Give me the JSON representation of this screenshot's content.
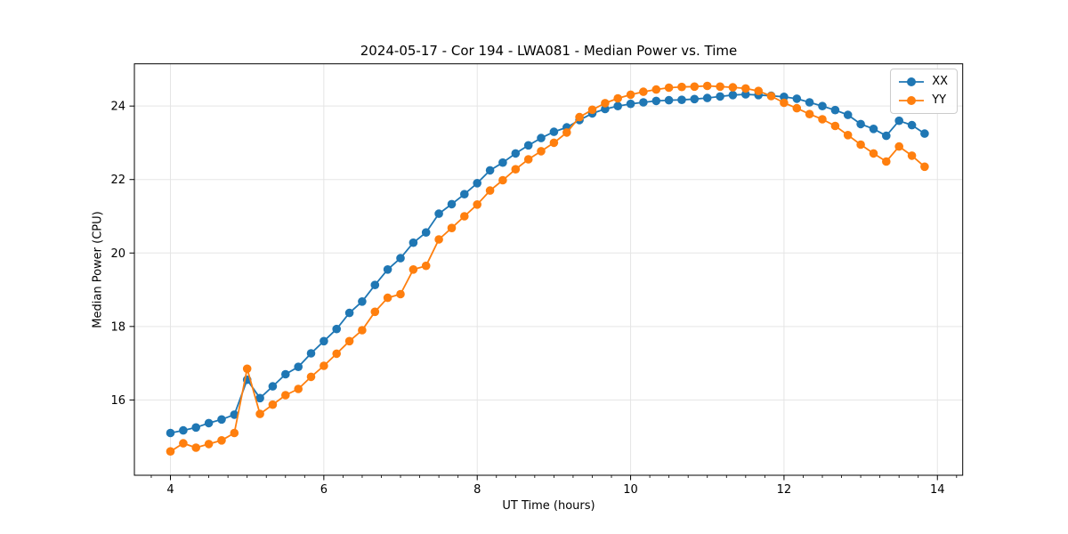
{
  "window": {
    "background_color": "#ffffff"
  },
  "chart_data": {
    "type": "line",
    "title": "2024-05-17 - Cor 194 - LWA081 - Median Power vs. Time",
    "xlabel": "UT Time (hours)",
    "ylabel": "Median Power (CPU)",
    "xlim": [
      3.53,
      14.33
    ],
    "ylim": [
      13.95,
      25.15
    ],
    "xticks": [
      4,
      6,
      8,
      10,
      12,
      14
    ],
    "yticks": [
      16,
      18,
      20,
      22,
      24
    ],
    "x_minor_tick_step": 0.25,
    "grid": true,
    "grid_color": "#e5e5e5",
    "spine_color": "#000000",
    "legend_position": "upper right",
    "x": [
      4.0,
      4.167,
      4.333,
      4.5,
      4.667,
      4.833,
      5.0,
      5.167,
      5.333,
      5.5,
      5.667,
      5.833,
      6.0,
      6.167,
      6.333,
      6.5,
      6.667,
      6.833,
      7.0,
      7.167,
      7.333,
      7.5,
      7.667,
      7.833,
      8.0,
      8.167,
      8.333,
      8.5,
      8.667,
      8.833,
      9.0,
      9.167,
      9.333,
      9.5,
      9.667,
      9.833,
      10.0,
      10.167,
      10.333,
      10.5,
      10.667,
      10.833,
      11.0,
      11.167,
      11.333,
      11.5,
      11.667,
      11.833,
      12.0,
      12.167,
      12.333,
      12.5,
      12.667,
      12.833,
      13.0,
      13.167,
      13.333,
      13.5,
      13.667,
      13.833
    ],
    "series": [
      {
        "name": "XX",
        "color": "#1f77b4",
        "marker": "circle",
        "values": [
          15.1,
          15.17,
          15.25,
          15.37,
          15.47,
          15.6,
          16.55,
          16.05,
          16.37,
          16.7,
          16.9,
          17.27,
          17.6,
          17.93,
          18.37,
          18.68,
          19.13,
          19.55,
          19.86,
          20.28,
          20.56,
          21.07,
          21.33,
          21.6,
          21.9,
          22.25,
          22.46,
          22.71,
          22.93,
          23.13,
          23.3,
          23.42,
          23.62,
          23.8,
          23.92,
          24.0,
          24.06,
          24.1,
          24.14,
          24.16,
          24.17,
          24.19,
          24.22,
          24.26,
          24.3,
          24.32,
          24.3,
          24.28,
          24.25,
          24.2,
          24.1,
          24.0,
          23.89,
          23.76,
          23.51,
          23.38,
          23.19,
          23.6,
          23.48,
          23.25
        ]
      },
      {
        "name": "YY",
        "color": "#ff7f0e",
        "marker": "circle",
        "values": [
          14.6,
          14.82,
          14.7,
          14.8,
          14.9,
          15.1,
          16.85,
          15.62,
          15.87,
          16.13,
          16.3,
          16.63,
          16.93,
          17.26,
          17.6,
          17.9,
          18.4,
          18.78,
          18.88,
          19.55,
          19.65,
          20.37,
          20.68,
          21.0,
          21.32,
          21.7,
          21.98,
          22.28,
          22.55,
          22.77,
          23.0,
          23.28,
          23.7,
          23.9,
          24.08,
          24.21,
          24.31,
          24.39,
          24.45,
          24.5,
          24.52,
          24.53,
          24.55,
          24.53,
          24.51,
          24.48,
          24.41,
          24.27,
          24.09,
          23.94,
          23.78,
          23.64,
          23.46,
          23.21,
          22.95,
          22.71,
          22.49,
          22.9,
          22.65,
          22.35
        ]
      }
    ]
  }
}
